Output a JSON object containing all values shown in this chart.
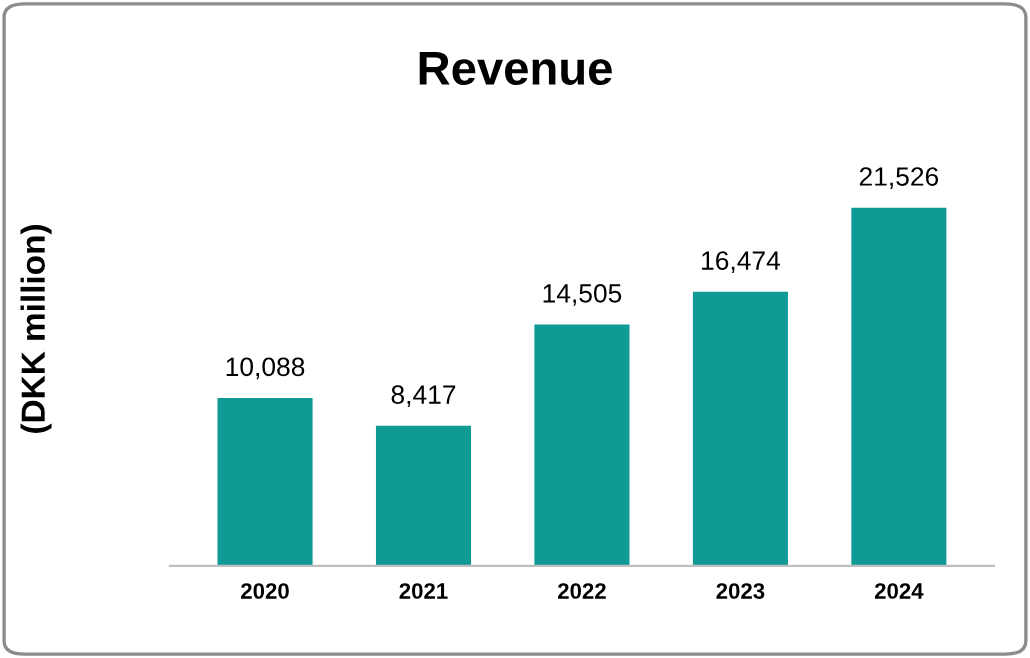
{
  "chart_data": {
    "type": "bar",
    "title": "Revenue",
    "ylabel": "(DKK million)",
    "categories": [
      "2020",
      "2021",
      "2022",
      "2023",
      "2024"
    ],
    "values": [
      10088,
      8417,
      14505,
      16474,
      21526
    ],
    "value_labels": [
      "10,088",
      "8,417",
      "14,505",
      "16,474",
      "21,526"
    ],
    "color": "#0f9a96",
    "grid": false,
    "legend": false
  }
}
